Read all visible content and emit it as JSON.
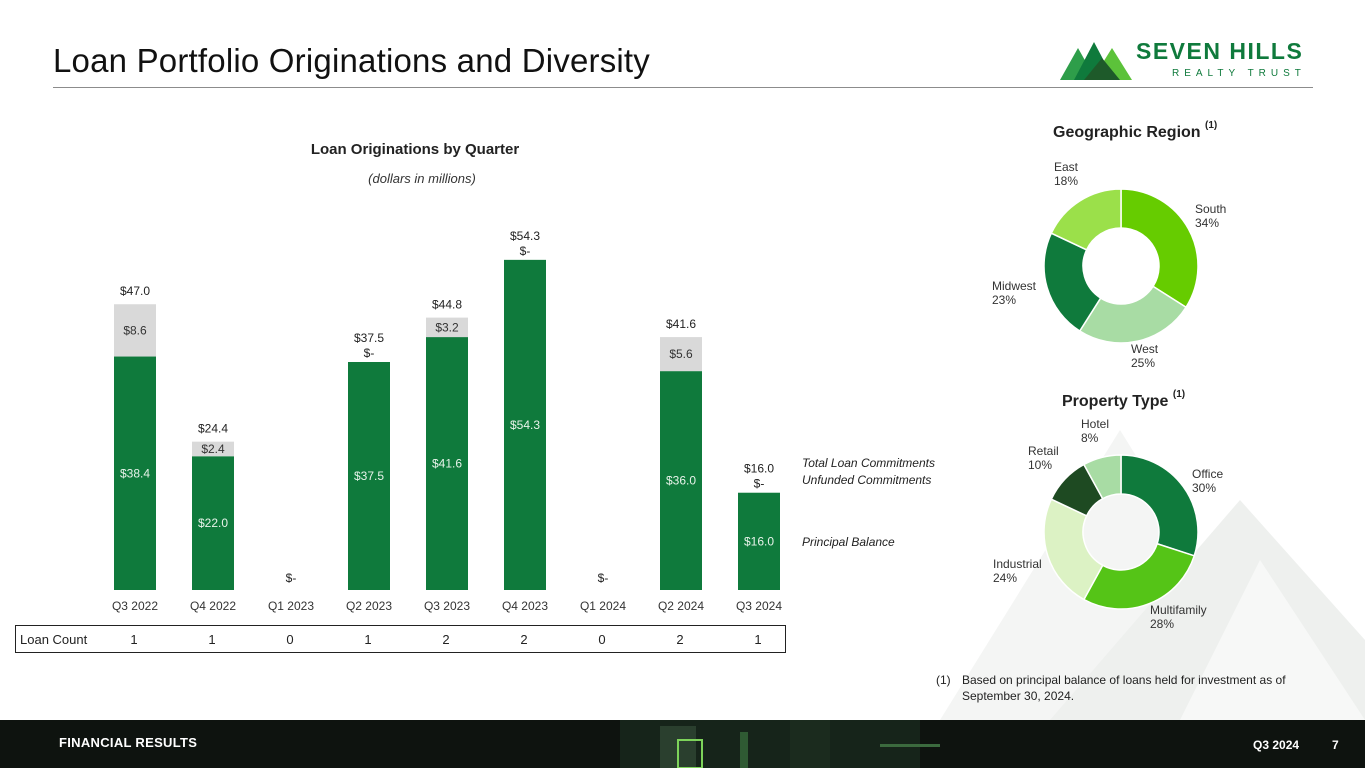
{
  "page": {
    "title": "Loan Portfolio Originations and Diversity",
    "logo": {
      "name": "SEVEN HILLS",
      "sub": "REALTY TRUST"
    },
    "footer": {
      "section": "FINANCIAL RESULTS",
      "period": "Q3 2024",
      "page_number": "7"
    },
    "footnote": {
      "mark": "(1)",
      "text": "Based on principal balance of loans held for investment as of September 30, 2024."
    },
    "loan_count": {
      "label": "Loan Count",
      "values": [
        "1",
        "1",
        "0",
        "1",
        "2",
        "2",
        "0",
        "2",
        "1"
      ]
    },
    "legend": {
      "total": "Total Loan Commitments",
      "unfunded": "Unfunded Commitments",
      "principal": "Principal Balance"
    },
    "colors": {
      "principal": "#0f7a3c",
      "unfunded": "#d9d9d9",
      "title_rule": "#8c8c8c"
    }
  },
  "chart_data": [
    {
      "type": "bar",
      "stacked": true,
      "title": "Loan Originations by Quarter",
      "subtitle": "(dollars in millions)",
      "categories": [
        "Q3 2022",
        "Q4 2022",
        "Q1 2023",
        "Q2 2023",
        "Q3 2023",
        "Q4 2023",
        "Q1 2024",
        "Q2 2024",
        "Q3 2024"
      ],
      "series": [
        {
          "name": "Principal Balance",
          "values": [
            38.4,
            22.0,
            0,
            37.5,
            41.6,
            54.3,
            0,
            36.0,
            16.0
          ],
          "labels": [
            "$38.4",
            "$22.0",
            "$-",
            "$37.5",
            "$41.6",
            "$54.3",
            "$-",
            "$36.0",
            "$16.0"
          ],
          "color": "#0f7a3c"
        },
        {
          "name": "Unfunded Commitments",
          "values": [
            8.6,
            2.4,
            0,
            0,
            3.2,
            0,
            0,
            5.6,
            0
          ],
          "labels": [
            "$8.6",
            "$2.4",
            "",
            "$-",
            "$3.2",
            "$-",
            "",
            "$5.6",
            "$-"
          ],
          "color": "#d9d9d9"
        }
      ],
      "totals": [
        47.0,
        24.4,
        0,
        37.5,
        44.8,
        54.3,
        0,
        41.6,
        16.0
      ],
      "total_labels": [
        "$47.0",
        "$24.4",
        "",
        "$37.5",
        "$44.8",
        "$54.3",
        "",
        "$41.6",
        "$16.0"
      ],
      "ylim": [
        0,
        60
      ]
    },
    {
      "type": "pie",
      "donut": true,
      "title": "Geographic Region",
      "note_mark": "(1)",
      "labels": [
        "South",
        "West",
        "Midwest",
        "East"
      ],
      "values": [
        34,
        25,
        23,
        18
      ],
      "value_labels": [
        "34%",
        "25%",
        "23%",
        "18%"
      ],
      "colors": [
        "#66cc00",
        "#a8dca4",
        "#0f7a3c",
        "#9be04a"
      ]
    },
    {
      "type": "pie",
      "donut": true,
      "title": "Property Type",
      "note_mark": "(1)",
      "labels": [
        "Office",
        "Multifamily",
        "Industrial",
        "Retail",
        "Hotel"
      ],
      "values": [
        30,
        28,
        24,
        10,
        8
      ],
      "value_labels": [
        "30%",
        "28%",
        "24%",
        "10%",
        "8%"
      ],
      "colors": [
        "#0f7a3c",
        "#55c417",
        "#dcf2c4",
        "#1e4a22",
        "#a8dca4"
      ]
    }
  ]
}
